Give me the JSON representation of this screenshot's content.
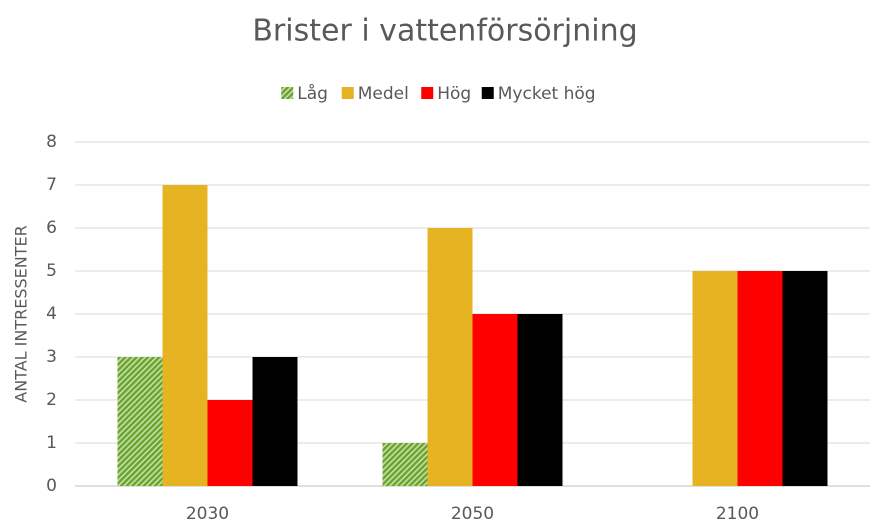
{
  "chart_data": {
    "type": "bar",
    "title": "Brister i vattenförsörjning",
    "y_label": "ANTAL INTRESSENTER",
    "categories": [
      "2030",
      "2050",
      "2100"
    ],
    "series": [
      {
        "name": "Låg",
        "color": "#6aa32e",
        "hatch": true,
        "values": [
          3,
          1,
          0
        ]
      },
      {
        "name": "Medel",
        "color": "#e6b422",
        "values": [
          7,
          6,
          5
        ]
      },
      {
        "name": "Hög",
        "color": "#ff0000",
        "values": [
          2,
          4,
          5
        ]
      },
      {
        "name": "Mycket hög",
        "color": "#000000",
        "values": [
          3,
          4,
          5
        ]
      }
    ],
    "ylim": [
      0,
      8
    ],
    "yticks": [
      0,
      1,
      2,
      3,
      4,
      5,
      6,
      7,
      8
    ],
    "grid": true,
    "legend": "top"
  }
}
